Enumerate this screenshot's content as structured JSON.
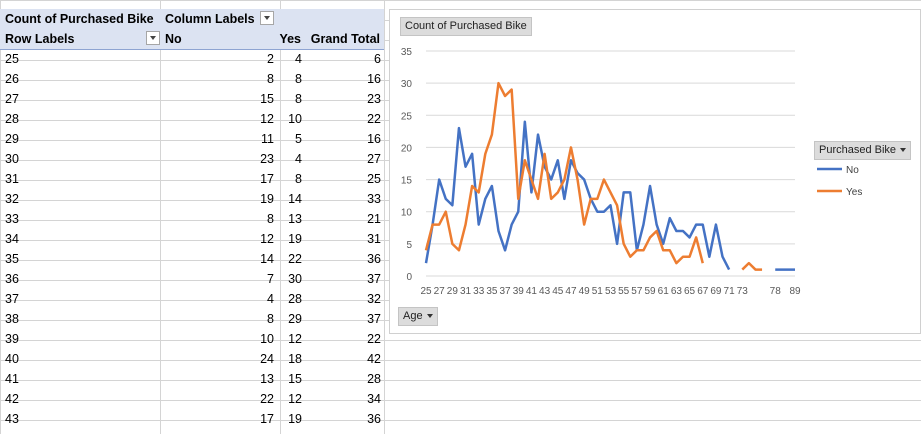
{
  "pivot": {
    "header": {
      "count_label": "Count of Purchased Bike",
      "column_labels": "Column Labels",
      "row_labels": "Row Labels",
      "col_no": "No",
      "col_yes": "Yes",
      "col_total": "Grand Total"
    },
    "rows": [
      {
        "age": "25",
        "no": "2",
        "yes": "4",
        "total": "6"
      },
      {
        "age": "26",
        "no": "8",
        "yes": "8",
        "total": "16"
      },
      {
        "age": "27",
        "no": "15",
        "yes": "8",
        "total": "23"
      },
      {
        "age": "28",
        "no": "12",
        "yes": "10",
        "total": "22"
      },
      {
        "age": "29",
        "no": "11",
        "yes": "5",
        "total": "16"
      },
      {
        "age": "30",
        "no": "23",
        "yes": "4",
        "total": "27"
      },
      {
        "age": "31",
        "no": "17",
        "yes": "8",
        "total": "25"
      },
      {
        "age": "32",
        "no": "19",
        "yes": "14",
        "total": "33"
      },
      {
        "age": "33",
        "no": "8",
        "yes": "13",
        "total": "21"
      },
      {
        "age": "34",
        "no": "12",
        "yes": "19",
        "total": "31"
      },
      {
        "age": "35",
        "no": "14",
        "yes": "22",
        "total": "36"
      },
      {
        "age": "36",
        "no": "7",
        "yes": "30",
        "total": "37"
      },
      {
        "age": "37",
        "no": "4",
        "yes": "28",
        "total": "32"
      },
      {
        "age": "38",
        "no": "8",
        "yes": "29",
        "total": "37"
      },
      {
        "age": "39",
        "no": "10",
        "yes": "12",
        "total": "22"
      },
      {
        "age": "40",
        "no": "24",
        "yes": "18",
        "total": "42"
      },
      {
        "age": "41",
        "no": "13",
        "yes": "15",
        "total": "28"
      },
      {
        "age": "42",
        "no": "22",
        "yes": "12",
        "total": "34"
      },
      {
        "age": "43",
        "no": "17",
        "yes": "19",
        "total": "36"
      }
    ]
  },
  "chart": {
    "title_button": "Count of Purchased Bike",
    "legend_button": "Purchased Bike",
    "axis_button": "Age"
  },
  "chart_data": {
    "type": "line",
    "title": "",
    "x": [
      "25",
      "26",
      "27",
      "28",
      "29",
      "30",
      "31",
      "32",
      "33",
      "34",
      "35",
      "36",
      "37",
      "38",
      "39",
      "40",
      "41",
      "42",
      "43",
      "44",
      "45",
      "46",
      "47",
      "48",
      "49",
      "50",
      "51",
      "52",
      "53",
      "54",
      "55",
      "56",
      "57",
      "58",
      "59",
      "60",
      "61",
      "62",
      "63",
      "64",
      "65",
      "66",
      "67",
      "68",
      "69",
      "70",
      "71",
      "72",
      "73",
      "74",
      "75",
      "76",
      "77",
      "78",
      "79",
      "80",
      "89"
    ],
    "x_tick_labels": [
      "25",
      "27",
      "29",
      "31",
      "33",
      "35",
      "37",
      "39",
      "41",
      "43",
      "45",
      "47",
      "49",
      "51",
      "53",
      "55",
      "57",
      "59",
      "61",
      "63",
      "65",
      "67",
      "69",
      "71",
      "73",
      "78",
      "89"
    ],
    "ylim": [
      0,
      35
    ],
    "y_ticks": [
      0,
      5,
      10,
      15,
      20,
      25,
      30,
      35
    ],
    "series": [
      {
        "name": "No",
        "color": "#4472c4",
        "values": [
          2,
          8,
          15,
          12,
          11,
          23,
          17,
          19,
          8,
          12,
          14,
          7,
          4,
          8,
          10,
          24,
          13,
          22,
          17,
          15,
          18,
          12,
          18,
          16,
          15,
          12,
          10,
          10,
          11,
          5,
          13,
          13,
          4,
          8,
          14,
          8,
          5,
          9,
          7,
          7,
          6,
          8,
          8,
          3,
          8,
          3,
          1,
          null,
          null,
          null,
          null,
          null,
          null,
          1,
          1,
          1,
          1
        ]
      },
      {
        "name": "Yes",
        "color": "#ed7d31",
        "values": [
          4,
          8,
          8,
          10,
          5,
          4,
          8,
          14,
          13,
          19,
          22,
          30,
          28,
          29,
          12,
          18,
          15,
          12,
          19,
          12,
          13,
          15,
          20,
          15,
          8,
          12,
          12,
          15,
          13,
          11,
          5,
          3,
          4,
          4,
          6,
          7,
          4,
          4,
          2,
          3,
          3,
          6,
          2,
          null,
          null,
          null,
          null,
          null,
          1,
          2,
          1,
          1,
          null,
          null,
          null,
          null,
          null
        ]
      }
    ],
    "legend": "right",
    "grid": true
  }
}
